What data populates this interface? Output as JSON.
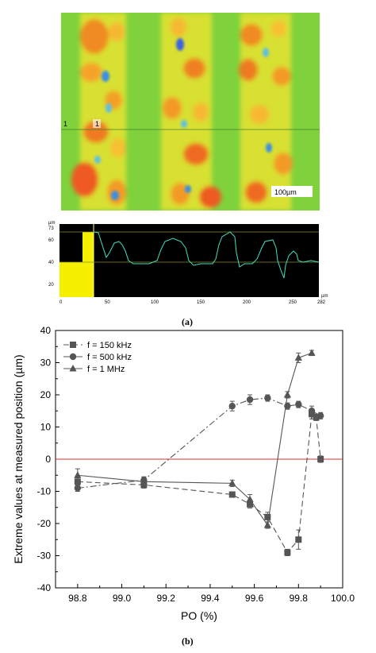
{
  "panel_a": {
    "label": "(a)",
    "map": {
      "line_markers": [
        "1",
        "1"
      ],
      "scale_bar": "100µm"
    },
    "profile": {
      "y_unit": "µm",
      "y_ticks": [
        "73",
        "60",
        "40",
        "20"
      ],
      "x_unit": "µm",
      "x_ticks": [
        "0",
        "50",
        "100",
        "150",
        "200",
        "250",
        "282"
      ]
    }
  },
  "panel_b": {
    "label": "(b)"
  },
  "chart_data": {
    "type": "line",
    "xlabel": "PO (%)",
    "ylabel": "Extreme values at measured position (µm)",
    "xlim": [
      98.7,
      100.0
    ],
    "ylim": [
      -40,
      40
    ],
    "xticks": [
      "98.8",
      "99.0",
      "99.2",
      "99.4",
      "99.6",
      "99.8",
      "100.0"
    ],
    "yticks": [
      "40",
      "30",
      "20",
      "10",
      "0",
      "-10",
      "-20",
      "-30",
      "-40"
    ],
    "legend_position": "top-left",
    "reference_line": {
      "y": 0,
      "color": "#e03030"
    },
    "series": [
      {
        "name": "f = 150 kHz",
        "marker": "square",
        "dash": "dashed",
        "x": [
          98.8,
          99.1,
          99.5,
          99.58,
          99.66,
          99.75,
          99.8,
          99.86,
          99.88,
          99.9
        ],
        "y": [
          -7,
          -8,
          -11,
          -14,
          -18,
          -29,
          -25,
          14,
          13,
          0
        ],
        "err": [
          1.2,
          1,
          0.8,
          1.2,
          1.5,
          1,
          3,
          1.5,
          1,
          1
        ]
      },
      {
        "name": "f = 500 kHz",
        "marker": "circle",
        "dash": "dashdot",
        "x": [
          98.8,
          99.1,
          99.5,
          99.58,
          99.66,
          99.75,
          99.8,
          99.86,
          99.9
        ],
        "y": [
          -9,
          -6.5,
          16.5,
          18.5,
          19,
          16.5,
          17,
          15,
          13.5
        ],
        "err": [
          1,
          1,
          1.5,
          1.5,
          1,
          1,
          1,
          1.5,
          1
        ]
      },
      {
        "name": "f = 1 MHz",
        "marker": "triangle",
        "dash": "solid",
        "x": [
          98.8,
          99.1,
          99.5,
          99.58,
          99.66,
          99.75,
          99.8,
          99.86
        ],
        "y": [
          -5,
          -7,
          -7.5,
          -12.5,
          -20.5,
          20,
          31.5,
          33
        ],
        "err": [
          2,
          1.5,
          1,
          1.5,
          1,
          1,
          1.5,
          0.8
        ]
      }
    ]
  }
}
